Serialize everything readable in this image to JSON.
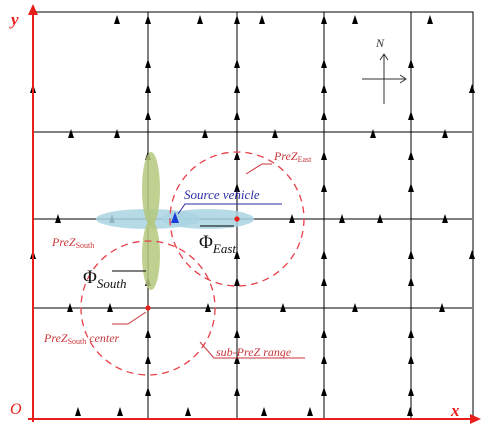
{
  "axes": {
    "origin": "O",
    "x": "x",
    "y": "y",
    "axis_color": "#e8201c"
  },
  "compass": {
    "north": "N"
  },
  "labels": {
    "prez_east_main": "PreZ",
    "prez_east_sub": "East",
    "prez_south_main": "PreZ",
    "prez_south_sub": "South",
    "source_vehicle": "Source vehicle",
    "phi_east_main": "Φ",
    "phi_east_sub": "East",
    "phi_south_main": "Φ",
    "phi_south_sub": "South",
    "prez_south_center_main": "PreZ",
    "prez_south_center_sub": "South",
    "prez_south_center_tail": "center",
    "sub_prez_range": "sub-PreZ range"
  },
  "colors": {
    "grid": "#000000",
    "arrow": "#000000",
    "dashed_circle": "#e8404a",
    "red_text": "#c8353a",
    "blue_text": "#2a2aa8",
    "source_vehicle_marker": "#1a3dd8",
    "ellipse_blue": "#a9d4e2",
    "ellipse_green": "#b5c87e",
    "center_dot": "#e8201c"
  }
}
